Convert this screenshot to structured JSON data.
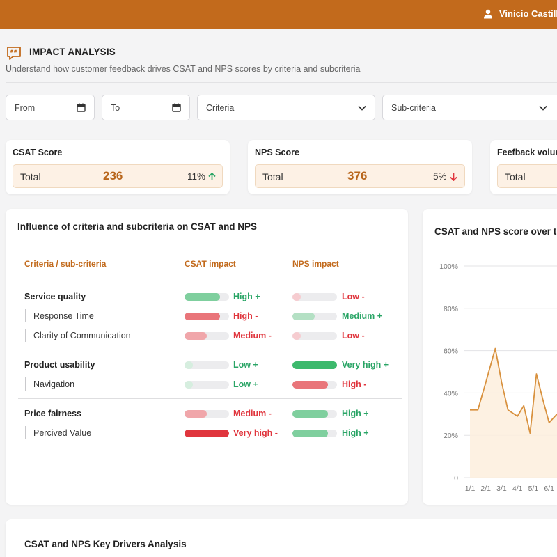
{
  "header": {
    "user_name": "Vinicio Castillo"
  },
  "page": {
    "title": "IMPACT ANALYSIS",
    "subtitle": "Understand how customer feedback drives CSAT and NPS scores by criteria and subcriteria"
  },
  "filters": {
    "from_label": "From",
    "to_label": "To",
    "criteria_label": "Criteria",
    "subcriteria_label": "Sub-criteria"
  },
  "kpis": [
    {
      "title": "CSAT Score",
      "label": "Total",
      "value": "236",
      "change": "11%",
      "trend": "up",
      "trend_color": "#2aa566"
    },
    {
      "title": "NPS Score",
      "label": "Total",
      "value": "376",
      "change": "5%",
      "trend": "down",
      "trend_color": "#e0353d"
    },
    {
      "title": "Feefback volun",
      "label": "Total"
    }
  ],
  "influence": {
    "title": "Influence of criteria and subcriteria on CSAT and NPS",
    "col_criteria": "Criteria / sub-criteria",
    "col_csat": "CSAT impact",
    "col_nps": "NPS impact",
    "rows": [
      {
        "label": "Service quality",
        "type": "parent",
        "csat_level": "High +",
        "csat_fraction": 0.8,
        "csat_color": "#7fcf9e",
        "csat_text_color": "#2aa566",
        "nps_level": "Low -",
        "nps_fraction": 0.18,
        "nps_color": "#f6ccd0",
        "nps_text_color": "#e0353d"
      },
      {
        "label": "Response Time",
        "type": "child",
        "csat_level": "High -",
        "csat_fraction": 0.8,
        "csat_color": "#e9757a",
        "csat_text_color": "#e0353d",
        "nps_level": "Medium +",
        "nps_fraction": 0.5,
        "nps_color": "#b4e0c4",
        "nps_text_color": "#2aa566"
      },
      {
        "label": "Clarity of Communication",
        "type": "child",
        "csat_level": "Medium -",
        "csat_fraction": 0.5,
        "csat_color": "#f0a6aa",
        "csat_text_color": "#e0353d",
        "nps_level": "Low -",
        "nps_fraction": 0.18,
        "nps_color": "#f6ccd0",
        "nps_text_color": "#e0353d"
      },
      {
        "label": "Product usability",
        "type": "parent",
        "csat_level": "Low +",
        "csat_fraction": 0.18,
        "csat_color": "#d6eedf",
        "csat_text_color": "#2aa566",
        "nps_level": "Very high +",
        "nps_fraction": 1.0,
        "nps_color": "#3cb96c",
        "nps_text_color": "#2aa566"
      },
      {
        "label": "Navigation",
        "type": "child",
        "csat_level": "Low +",
        "csat_fraction": 0.18,
        "csat_color": "#d6eedf",
        "csat_text_color": "#2aa566",
        "nps_level": "High -",
        "nps_fraction": 0.8,
        "nps_color": "#e9757a",
        "nps_text_color": "#e0353d"
      },
      {
        "label": "Price fairness",
        "type": "parent",
        "csat_level": "Medium -",
        "csat_fraction": 0.5,
        "csat_color": "#f0a6aa",
        "csat_text_color": "#e0353d",
        "nps_level": "High +",
        "nps_fraction": 0.8,
        "nps_color": "#7fcf9e",
        "nps_text_color": "#2aa566"
      },
      {
        "label": "Percived Value",
        "type": "child",
        "csat_level": "Very high -",
        "csat_fraction": 1.0,
        "csat_color": "#e0353d",
        "csat_text_color": "#e0353d",
        "nps_level": "High +",
        "nps_fraction": 0.8,
        "nps_color": "#7fcf9e",
        "nps_text_color": "#2aa566"
      }
    ]
  },
  "chart_data": {
    "type": "area",
    "title": "CSAT and NPS score over t",
    "y_ticks": [
      "100%",
      "80%",
      "60%",
      "40%",
      "20%",
      "0"
    ],
    "ylim": [
      0,
      100
    ],
    "x_tick_labels": [
      "1/1",
      "2/1",
      "3/1",
      "4/1",
      "5/1",
      "6/1"
    ],
    "x": [
      1,
      1.5,
      2,
      2.6,
      3,
      3.4,
      4,
      4.4,
      4.8,
      5.2,
      5.6,
      6,
      6.5
    ],
    "xlim": [
      1,
      6.5
    ],
    "series": [
      {
        "values": [
          32,
          32,
          45,
          61,
          45,
          32,
          29,
          34,
          21,
          49,
          37,
          26,
          30
        ],
        "color": "#d8913e"
      }
    ],
    "grid": true
  },
  "drivers": {
    "title": "CSAT and NPS Key Drivers Analysis"
  }
}
